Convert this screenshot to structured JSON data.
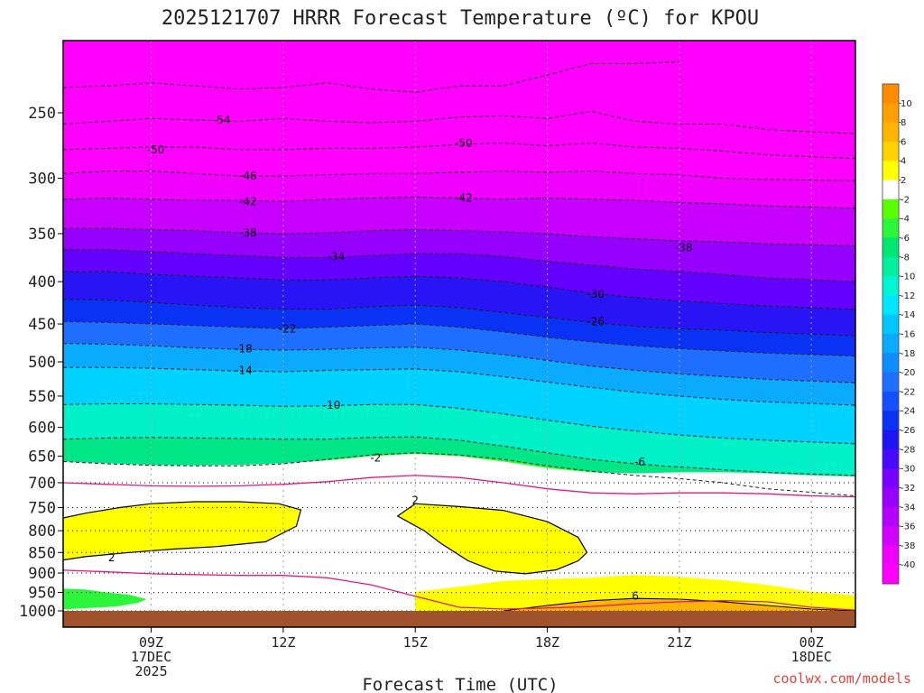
{
  "chart_data": {
    "type": "heatmap",
    "title": "2025121707 HRRR Forecast Temperature (ºC) for KPOU",
    "xlabel": "Forecast Time (UTC)",
    "ylabel": "",
    "x_ticks": [
      {
        "hour": 9,
        "label": "09Z",
        "sub1": "17DEC",
        "sub2": "2025"
      },
      {
        "hour": 12,
        "label": "12Z",
        "sub1": "",
        "sub2": ""
      },
      {
        "hour": 15,
        "label": "15Z",
        "sub1": "",
        "sub2": ""
      },
      {
        "hour": 18,
        "label": "18Z",
        "sub1": "",
        "sub2": ""
      },
      {
        "hour": 21,
        "label": "21Z",
        "sub1": "",
        "sub2": ""
      },
      {
        "hour": 24,
        "label": "00Z",
        "sub1": "18DEC",
        "sub2": ""
      }
    ],
    "xlim": [
      7,
      25
    ],
    "y_ticks": [
      "250",
      "300",
      "350",
      "400",
      "450",
      "500",
      "550",
      "600",
      "650",
      "700",
      "750",
      "800",
      "850",
      "900",
      "950",
      "1000"
    ],
    "ylim_hpa": [
      1000,
      200
    ],
    "y_scale": "log",
    "colorbar": {
      "labels": [
        "10",
        "8",
        "6",
        "4",
        "2",
        "-2",
        "-4",
        "-6",
        "-8",
        "-10",
        "-12",
        "-14",
        "-16",
        "-18",
        "-20",
        "-22",
        "-24",
        "-26",
        "-28",
        "-30",
        "-32",
        "-34",
        "-36",
        "-38",
        "-40"
      ],
      "colors": [
        "#ff8c00",
        "#ff9f00",
        "#ffb400",
        "#ffd200",
        "#ffff00",
        "#ffffff",
        "#5aff00",
        "#2df53c",
        "#00e673",
        "#00f0a0",
        "#00f5d2",
        "#00e6ff",
        "#00c8ff",
        "#0aaaff",
        "#0f8cff",
        "#1e6eff",
        "#1450ff",
        "#0a32f5",
        "#1e14f0",
        "#460aff",
        "#7800ff",
        "#9600ff",
        "#b400ff",
        "#d200ff",
        "#f000ff",
        "#ff00ff"
      ]
    },
    "isotherms": [
      {
        "label": "-54",
        "pressure": [
          233,
          232,
          230,
          232,
          234,
          233,
          230,
          234,
          236,
          232,
          232,
          225,
          218,
          218,
          217
        ],
        "hour": [
          7,
          8,
          9,
          10,
          11,
          12,
          13,
          14,
          15,
          16,
          17,
          18,
          19,
          20,
          21
        ],
        "label_at": [
          10.6,
          255
        ]
      },
      {
        "label": "-54",
        "pressure": [
          258,
          256,
          254,
          255,
          256,
          254,
          256,
          257,
          256,
          253,
          252,
          254,
          249,
          256,
          258,
          258,
          262,
          265
        ],
        "hour": [
          7,
          8,
          9,
          10,
          11,
          12,
          13,
          14,
          15,
          16,
          17,
          18,
          19,
          20,
          21,
          22,
          23,
          25
        ]
      },
      {
        "label": "-50",
        "pressure": [
          277,
          276,
          275,
          275,
          277,
          277,
          276,
          276,
          275,
          273,
          272,
          274,
          272,
          275,
          276,
          278,
          281,
          284
        ],
        "hour": [
          7,
          8,
          9,
          10,
          11,
          12,
          13,
          14,
          15,
          16,
          17,
          18,
          19,
          20,
          21,
          22,
          23,
          25
        ],
        "label_at": [
          9.1,
          277
        ]
      },
      {
        "label": "-50",
        "pressure": [],
        "hour": [],
        "label_at": [
          16.1,
          272
        ]
      },
      {
        "label": "-46",
        "pressure": [
          296,
          294,
          294,
          296,
          298,
          298,
          297,
          296,
          296,
          295,
          294,
          295,
          294,
          296,
          297,
          300,
          301,
          302
        ],
        "hour": [
          7,
          8,
          9,
          10,
          11,
          12,
          13,
          14,
          15,
          16,
          17,
          18,
          19,
          20,
          21,
          22,
          23,
          25
        ],
        "label_at": [
          11.2,
          298
        ]
      },
      {
        "label": "-42",
        "pressure": [
          318,
          317,
          318,
          319,
          319,
          320,
          318,
          317,
          316,
          317,
          318,
          317,
          318,
          319,
          321,
          322,
          324,
          326
        ],
        "hour": [
          7,
          8,
          9,
          10,
          11,
          12,
          13,
          14,
          15,
          16,
          17,
          18,
          19,
          20,
          21,
          22,
          23,
          25
        ],
        "label_at": [
          11.2,
          320
        ]
      },
      {
        "label": "-42",
        "pressure": [],
        "hour": [],
        "label_at": [
          16.1,
          317
        ]
      },
      {
        "label": "-38",
        "pressure": [
          345,
          345,
          346,
          347,
          349,
          350,
          349,
          347,
          346,
          347,
          348,
          350,
          353,
          355,
          357,
          358,
          360,
          362
        ],
        "hour": [
          7,
          8,
          9,
          10,
          11,
          12,
          13,
          14,
          15,
          16,
          17,
          18,
          19,
          20,
          21,
          22,
          23,
          25
        ],
        "label_at": [
          11.2,
          349
        ]
      },
      {
        "label": "-38",
        "pressure": [],
        "hour": [],
        "label_at": [
          21.1,
          364
        ]
      },
      {
        "label": "-34",
        "pressure": [
          366,
          366,
          368,
          370,
          372,
          374,
          374,
          372,
          370,
          370,
          373,
          378,
          382,
          386,
          389,
          392,
          396,
          400
        ],
        "hour": [
          7,
          8,
          9,
          10,
          11,
          12,
          13,
          14,
          15,
          16,
          17,
          18,
          19,
          20,
          21,
          22,
          23,
          25
        ],
        "label_at": [
          13.2,
          373
        ]
      },
      {
        "label": "-30",
        "pressure": [
          389,
          389,
          392,
          394,
          396,
          398,
          398,
          396,
          394,
          396,
          400,
          406,
          413,
          418,
          422,
          425,
          428,
          432
        ],
        "hour": [
          7,
          8,
          9,
          10,
          11,
          12,
          13,
          14,
          15,
          16,
          17,
          18,
          19,
          20,
          21,
          22,
          23,
          25
        ],
        "label_at": [
          19.1,
          414
        ]
      },
      {
        "label": "-26",
        "pressure": [
          420,
          421,
          424,
          427,
          430,
          432,
          432,
          429,
          427,
          430,
          436,
          442,
          448,
          453,
          456,
          458,
          461,
          465
        ],
        "hour": [
          7,
          8,
          9,
          10,
          11,
          12,
          13,
          14,
          15,
          16,
          17,
          18,
          19,
          20,
          21,
          22,
          23,
          25
        ],
        "label_at": [
          19.1,
          447
        ]
      },
      {
        "label": "-22",
        "pressure": [
          447,
          448,
          450,
          452,
          454,
          456,
          454,
          452,
          450,
          454,
          460,
          467,
          473,
          478,
          482,
          485,
          488,
          492
        ],
        "hour": [
          7,
          8,
          9,
          10,
          11,
          12,
          13,
          14,
          15,
          16,
          17,
          18,
          19,
          20,
          21,
          22,
          23,
          25
        ],
        "label_at": [
          12.1,
          456
        ]
      },
      {
        "label": "-18",
        "pressure": [
          475,
          476,
          478,
          481,
          483,
          484,
          483,
          481,
          480,
          484,
          490,
          498,
          506,
          512,
          517,
          521,
          525,
          530
        ],
        "hour": [
          7,
          8,
          9,
          10,
          11,
          12,
          13,
          14,
          15,
          16,
          17,
          18,
          19,
          20,
          21,
          22,
          23,
          25
        ],
        "label_at": [
          11.1,
          482
        ]
      },
      {
        "label": "-14",
        "pressure": [
          508,
          508,
          509,
          511,
          513,
          514,
          512,
          511,
          510,
          514,
          521,
          529,
          537,
          544,
          550,
          555,
          559,
          564
        ],
        "hour": [
          7,
          8,
          9,
          10,
          11,
          12,
          13,
          14,
          15,
          16,
          17,
          18,
          19,
          20,
          21,
          22,
          23,
          25
        ],
        "label_at": [
          11.1,
          512
        ]
      },
      {
        "label": "-10",
        "pressure": [
          563,
          562,
          562,
          563,
          564,
          566,
          565,
          563,
          563,
          569,
          578,
          588,
          598,
          606,
          613,
          618,
          622,
          628
        ],
        "hour": [
          7,
          8,
          9,
          10,
          11,
          12,
          13,
          14,
          15,
          16,
          17,
          18,
          19,
          20,
          21,
          22,
          23,
          25
        ],
        "label_at": [
          13.1,
          564
        ]
      },
      {
        "label": "-6",
        "pressure": [
          620,
          618,
          617,
          618,
          619,
          620,
          620,
          617,
          616,
          622,
          632,
          644,
          656,
          664,
          670,
          675,
          680,
          686
        ],
        "hour": [
          7,
          8,
          9,
          10,
          11,
          12,
          13,
          14,
          15,
          16,
          17,
          18,
          19,
          20,
          21,
          22,
          23,
          25
        ],
        "label_at": [
          20.1,
          661
        ]
      },
      {
        "label": "-2",
        "pressure": [
          660,
          664,
          667,
          668,
          668,
          664,
          656,
          648,
          644,
          648,
          656,
          668,
          678,
          686,
          692,
          700,
          712,
          726
        ],
        "hour": [
          7,
          8,
          9,
          10,
          11,
          12,
          13,
          14,
          15,
          16,
          17,
          18,
          19,
          20,
          21,
          22,
          23,
          25
        ],
        "label_at": [
          14.1,
          653
        ]
      }
    ],
    "freezing_line_upper": {
      "hour": [
        7,
        8,
        9,
        10,
        11,
        12,
        13,
        14,
        15,
        16,
        17,
        18,
        19,
        20,
        21,
        22,
        23,
        24,
        25
      ],
      "pressure": [
        700,
        703,
        706,
        707,
        706,
        703,
        698,
        690,
        686,
        690,
        700,
        712,
        720,
        722,
        720,
        720,
        722,
        726,
        728
      ]
    },
    "freezing_line_lower": {
      "hour": [
        7,
        8,
        9,
        10,
        11,
        12,
        13,
        14,
        15,
        16,
        17,
        18,
        19,
        20,
        21,
        22,
        23,
        24,
        25
      ],
      "pressure": [
        893,
        897,
        902,
        904,
        906,
        906,
        912,
        930,
        960,
        990,
        995,
        992,
        988,
        980,
        975,
        972,
        975,
        990,
        998
      ]
    },
    "warm_nose": [
      {
        "label": "2",
        "hour": [
          7,
          7.5,
          8.3,
          9,
          10,
          11,
          11.9,
          12.4,
          12.3,
          11.6,
          10.5,
          9.5,
          8.5,
          7.5,
          7
        ],
        "pressure": [
          772,
          762,
          750,
          742,
          738,
          738,
          742,
          755,
          790,
          825,
          836,
          842,
          850,
          860,
          868
        ],
        "label_at": [
          8.1,
          862
        ]
      },
      {
        "label": "2",
        "hour": [
          14.6,
          15,
          16,
          17,
          18,
          18.7,
          18.9,
          18.7,
          18.2,
          17.5,
          16.8,
          16.2,
          15.6,
          15.2
        ],
        "pressure": [
          768,
          742,
          748,
          756,
          780,
          815,
          850,
          870,
          892,
          902,
          895,
          870,
          830,
          800
        ],
        "label_at": [
          15.0,
          735
        ]
      }
    ],
    "lower_warm_layer": {
      "hour": [
        15,
        16,
        17,
        18,
        19,
        20,
        21,
        22,
        23,
        24,
        25
      ],
      "pressure": [
        948,
        935,
        920,
        915,
        912,
        905,
        910,
        918,
        930,
        948,
        958
      ]
    },
    "warm_6_contour": {
      "label": "6",
      "hour": [
        17,
        18,
        19,
        20,
        21,
        22,
        23,
        24,
        25
      ],
      "pressure": [
        1000,
        985,
        972,
        966,
        968,
        975,
        985,
        995,
        1000
      ],
      "label_at": [
        20.0,
        960
      ]
    },
    "surface_cold_pool": {
      "hour": [
        7,
        7.5,
        8,
        8.5,
        8.9,
        8.7,
        8.2,
        7.6,
        7
      ],
      "pressure": [
        940,
        942,
        950,
        956,
        968,
        978,
        988,
        992,
        996
      ]
    },
    "credit": "coolwx.com/models"
  }
}
